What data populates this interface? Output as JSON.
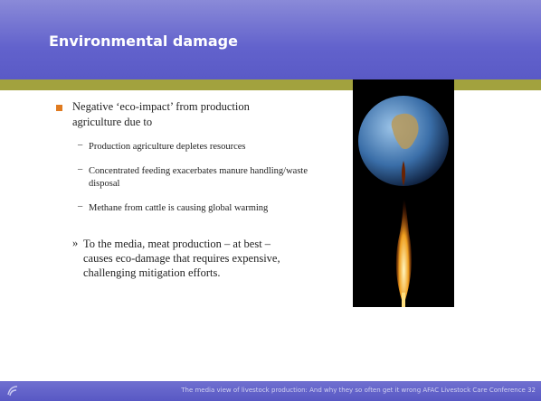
{
  "header": {
    "title": "Environmental damage"
  },
  "body": {
    "bullet": "Negative ‘eco-impact’ from production agriculture due to",
    "sub_bullets": [
      "Production agriculture depletes resources",
      "Concentrated feeding exacerbates manure handling/waste disposal",
      "Methane from cattle is causing global warming"
    ],
    "conclusion": "To the media, meat production – at best – causes eco-damage that requires expensive, challenging mitigation efforts."
  },
  "footer": {
    "text": "The media view of livestock production: And why they so often get it wrong AFAC Livestock Care Conference 32"
  }
}
